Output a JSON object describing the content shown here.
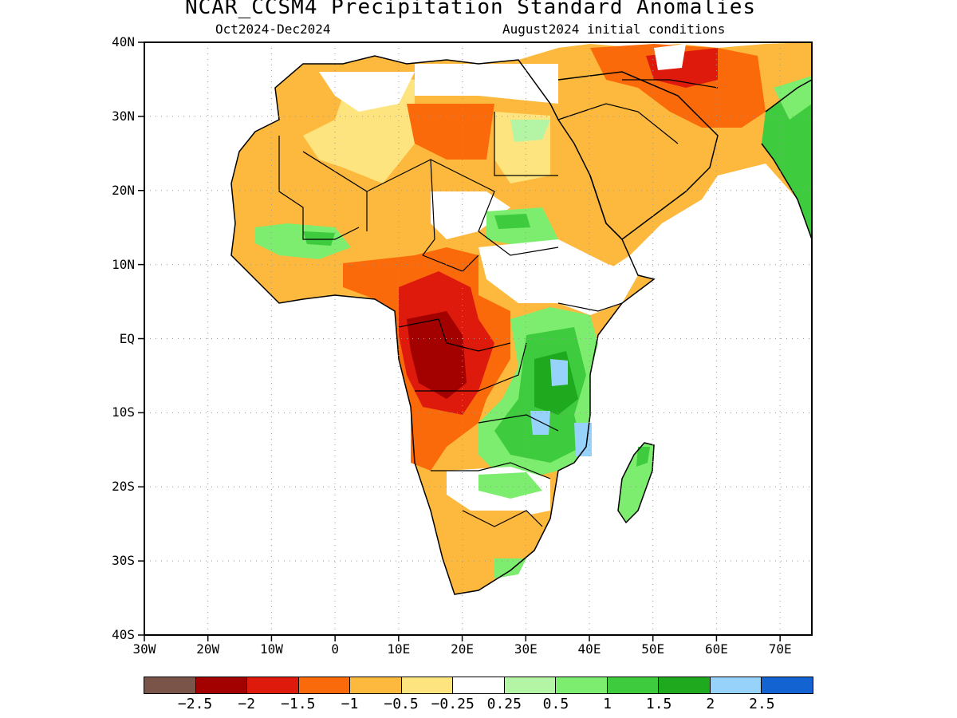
{
  "header": {
    "title": "NCAR_CCSM4 Precipitation Standard Anomalies",
    "period": "Oct2024-Dec2024",
    "init": "August2024 initial conditions"
  },
  "axes": {
    "lat_labels": [
      "40N",
      "30N",
      "20N",
      "10N",
      "EQ",
      "10S",
      "20S",
      "30S",
      "40S"
    ],
    "lat_values": [
      40,
      30,
      20,
      10,
      0,
      -10,
      -20,
      -30,
      -40
    ],
    "lon_labels": [
      "30W",
      "20W",
      "10W",
      "0",
      "10E",
      "20E",
      "30E",
      "40E",
      "50E",
      "60E",
      "70E"
    ],
    "lon_values": [
      -30,
      -20,
      -10,
      0,
      10,
      20,
      30,
      40,
      50,
      60,
      70
    ],
    "lon_range": [
      -30,
      75
    ],
    "lat_range": [
      -40,
      40
    ]
  },
  "colorbar": {
    "colors": [
      "#7b5449",
      "#a30000",
      "#dd1a0c",
      "#fb6a0a",
      "#fdb93d",
      "#fde47f",
      "#ffffff",
      "#b4f5a5",
      "#7ced6e",
      "#3ecc3e",
      "#1fa91f",
      "#96d2fa",
      "#1463d2"
    ],
    "labels": [
      "-2.5",
      "-2",
      "-1.5",
      "-1",
      "-0.5",
      "-0.25",
      "0.25",
      "0.5",
      "1",
      "1.5",
      "2",
      "2.5"
    ]
  },
  "regions": [
    {
      "name": "sahara-west",
      "color": "#fdb93d"
    },
    {
      "name": "sahara-central",
      "color": "#fde47f"
    },
    {
      "name": "arabia",
      "color": "#fdb93d"
    },
    {
      "name": "central-africa-dry",
      "color": "#fb6a0a"
    },
    {
      "name": "congo-very-dry",
      "color": "#a30000"
    },
    {
      "name": "east-africa-wet",
      "color": "#3ecc3e"
    },
    {
      "name": "southeast-wet",
      "color": "#1fa91f"
    },
    {
      "name": "southern-africa-dry",
      "color": "#fdb93d"
    },
    {
      "name": "madagascar-wet",
      "color": "#7ced6e"
    }
  ]
}
